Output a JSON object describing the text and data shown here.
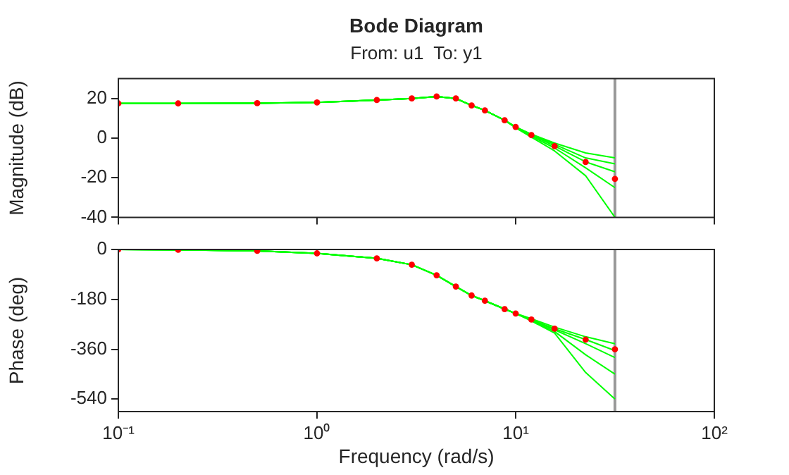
{
  "chart_data": [
    {
      "type": "line",
      "title": "Bode Diagram",
      "subtitle": "From: u1  To: y1",
      "ylabel": "Magnitude (dB)",
      "log": "x",
      "xlim": [
        0.1,
        100
      ],
      "ylim": [
        -40,
        30
      ],
      "yticks": [
        -40,
        -20,
        0,
        20
      ],
      "grid": false,
      "legend": false,
      "tick_labels": "y",
      "xticks": [
        {
          "value": 0.1,
          "label": null
        },
        {
          "value": 1,
          "label": null
        },
        {
          "value": 10,
          "label": null
        },
        {
          "value": 100,
          "label": null
        }
      ],
      "x": [
        0.1,
        0.2,
        0.5,
        1,
        2,
        3,
        4,
        5,
        6,
        7,
        8.8,
        10,
        12,
        15.7,
        22.5,
        31.6
      ],
      "series": [
        {
          "type": "line",
          "color": "#00ff00",
          "values": [
            17.5,
            17.5,
            17.6,
            18,
            19.2,
            20,
            21,
            20,
            16.5,
            14,
            9,
            5.6,
            2,
            -2.5,
            -7.5,
            -10
          ]
        },
        {
          "type": "line",
          "color": "#00ff00",
          "values": [
            17.5,
            17.5,
            17.6,
            18,
            19.2,
            20,
            21,
            20,
            16.5,
            14,
            9,
            5.6,
            1.8,
            -3.2,
            -10,
            -13
          ]
        },
        {
          "type": "line",
          "color": "#00ff00",
          "values": [
            17.5,
            17.5,
            17.6,
            18,
            19.2,
            20,
            21,
            20,
            16.5,
            14,
            9,
            5.6,
            1.5,
            -4,
            -12,
            -17
          ]
        },
        {
          "type": "line",
          "color": "#00ff00",
          "values": [
            17.5,
            17.5,
            17.6,
            18,
            19.2,
            20,
            21,
            20,
            16.5,
            14,
            9,
            5.4,
            1,
            -5,
            -15,
            -25
          ]
        },
        {
          "type": "line",
          "color": "#00ff00",
          "values": [
            17.5,
            17.5,
            17.6,
            18,
            19.2,
            20,
            21,
            20,
            16.5,
            14,
            9,
            5.2,
            0.5,
            -6.5,
            -19,
            -40
          ]
        },
        {
          "type": "scatter",
          "color": "#ff0000",
          "values": [
            17.5,
            17.5,
            17.6,
            18,
            19.2,
            20,
            21,
            20,
            16.5,
            14,
            9,
            5.6,
            1.5,
            -4.1,
            -12.1,
            -20.6
          ]
        }
      ],
      "ref_lines": [
        {
          "axis": "x",
          "value": 31.6,
          "color": "#999999"
        }
      ]
    },
    {
      "type": "line",
      "xlabel": "Frequency (rad/s)",
      "ylabel": "Phase (deg)",
      "log": "x",
      "xlim": [
        0.1,
        100
      ],
      "ylim": [
        -585,
        0
      ],
      "yticks": [
        -540,
        -360,
        -180,
        0
      ],
      "grid": false,
      "legend": false,
      "xticks": [
        {
          "value": 0.1,
          "label": "10⁻¹"
        },
        {
          "value": 1,
          "label": "10⁰"
        },
        {
          "value": 10,
          "label": "10¹"
        },
        {
          "value": 100,
          "label": "10²"
        }
      ],
      "x": [
        0.1,
        0.2,
        0.5,
        1,
        2,
        3,
        4,
        5,
        6,
        7,
        8.8,
        10,
        12,
        15.7,
        22.5,
        31.6
      ],
      "series": [
        {
          "type": "line",
          "color": "#00ff00",
          "values": [
            0,
            -1,
            -5,
            -14,
            -32,
            -55,
            -93,
            -134,
            -166,
            -185,
            -215,
            -231,
            -250,
            -280,
            -315,
            -340
          ]
        },
        {
          "type": "line",
          "color": "#00ff00",
          "values": [
            0,
            -1,
            -5,
            -14,
            -32,
            -55,
            -93,
            -134,
            -166,
            -185,
            -215,
            -231,
            -253,
            -286,
            -325,
            -365
          ]
        },
        {
          "type": "line",
          "color": "#00ff00",
          "values": [
            0,
            -1,
            -5,
            -14,
            -32,
            -55,
            -93,
            -134,
            -166,
            -185,
            -215,
            -231,
            -254,
            -290,
            -340,
            -390
          ]
        },
        {
          "type": "line",
          "color": "#00ff00",
          "values": [
            0,
            -1,
            -5,
            -14,
            -32,
            -55,
            -93,
            -134,
            -166,
            -185,
            -215,
            -231,
            -256,
            -296,
            -380,
            -450
          ]
        },
        {
          "type": "line",
          "color": "#00ff00",
          "values": [
            0,
            -1,
            -5,
            -14,
            -32,
            -55,
            -93,
            -134,
            -166,
            -185,
            -215,
            -231,
            -258,
            -302,
            -444,
            -540
          ]
        },
        {
          "type": "scatter",
          "color": "#ff0000",
          "values": [
            0,
            -1,
            -5,
            -14,
            -32,
            -55,
            -93,
            -134,
            -166,
            -185,
            -215,
            -231,
            -253,
            -286,
            -325,
            -360
          ]
        }
      ],
      "ref_lines": [
        {
          "axis": "x",
          "value": 31.6,
          "color": "#999999"
        }
      ]
    }
  ]
}
